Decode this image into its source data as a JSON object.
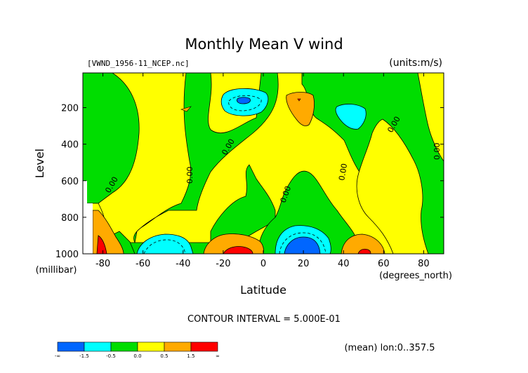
{
  "chart_data": {
    "type": "heatmap",
    "title": "Monthly Mean V wind",
    "file_label": "[VWND_1956-11_NCEP.nc]",
    "units_label": "(units:m/s)",
    "xlabel": "Latitude",
    "x_units": "(degrees_north)",
    "ylabel": "Level",
    "y_units": "(millibar)",
    "xlim": [
      -90,
      90
    ],
    "ylim": [
      1000,
      10
    ],
    "y_scale": "linear, inverted (pressure)",
    "x_ticks": [
      -80,
      -60,
      -40,
      -20,
      0,
      20,
      40,
      60,
      80
    ],
    "y_ticks": [
      200,
      400,
      600,
      800,
      1000
    ],
    "contour_interval_text": "CONTOUR INTERVAL = 5.000E-01",
    "contour_labels": [
      "0.00",
      "0.00",
      "0.00",
      "0.00",
      "0.00",
      "0.00",
      "0.00"
    ],
    "footer_text": "(mean) lon:0..357.5",
    "colorbar": {
      "bins": [
        {
          "range": "< -1.5",
          "color": "#0066ff"
        },
        {
          "range": "-1.5 to -0.5",
          "color": "#00ffff"
        },
        {
          "range": "-0.5 to 0.0",
          "color": "#00dd00"
        },
        {
          "range": "0.0 to 0.5",
          "color": "#ffff00"
        },
        {
          "range": "0.5 to 1.5",
          "color": "#ffaa00"
        },
        {
          "range": "> 1.5",
          "color": "#ff0000"
        }
      ],
      "labels": [
        "-∞",
        "-1.5",
        "-0.5",
        "0.0",
        "0.5",
        "1.5",
        "∞"
      ]
    },
    "regions": [
      {
        "name": "green-left-column",
        "level": "-0.5 to 0.0",
        "lat": [
          -90,
          -60
        ],
        "lev": [
          40,
          640
        ]
      },
      {
        "name": "green-mid-band",
        "level": "-0.5 to 0.0",
        "lat": [
          -45,
          -10
        ],
        "lev": [
          40,
          960
        ]
      },
      {
        "name": "cyan-upper-10S",
        "level": "-1.5 to -0.5",
        "lat": [
          -20,
          -3
        ],
        "lev": [
          100,
          220
        ]
      },
      {
        "name": "blue-upper-10S",
        "level": "< -1.5",
        "lat": [
          -14,
          -9
        ],
        "lev": [
          140,
          170
        ]
      },
      {
        "name": "orange-upper-20N",
        "level": "0.5 to 1.5",
        "lat": [
          12,
          24
        ],
        "lev": [
          90,
          280
        ]
      },
      {
        "name": "red-upper-20N",
        "level": "> 1.5",
        "lat": [
          17,
          19
        ],
        "lev": [
          140,
          150
        ]
      },
      {
        "name": "cyan-upper-40N",
        "level": "-1.5 to -0.5",
        "lat": [
          36,
          52
        ],
        "lev": [
          160,
          280
        ]
      },
      {
        "name": "green-right-block",
        "level": "-0.5 to 0.0",
        "lat": [
          25,
          90
        ],
        "lev": [
          40,
          960
        ]
      },
      {
        "name": "cyan-surface-50S",
        "level": "-1.5 to -0.5",
        "lat": [
          -63,
          -35
        ],
        "lev": [
          880,
          1000
        ]
      },
      {
        "name": "red-surface-10S",
        "level": "> 1.5",
        "lat": [
          -20,
          -3
        ],
        "lev": [
          960,
          1000
        ]
      },
      {
        "name": "orange-surface-10S",
        "level": "0.5 to 1.5",
        "lat": [
          -26,
          0
        ],
        "lev": [
          890,
          1000
        ]
      },
      {
        "name": "blue-surface-20N",
        "level": "< -1.5",
        "lat": [
          12,
          27
        ],
        "lev": [
          900,
          1000
        ]
      },
      {
        "name": "cyan-surface-20N",
        "level": "-1.5 to -0.5",
        "lat": [
          7,
          33
        ],
        "lev": [
          840,
          1000
        ]
      },
      {
        "name": "orange-surface-50N",
        "level": "0.5 to 1.5",
        "lat": [
          38,
          58
        ],
        "lev": [
          870,
          1000
        ]
      },
      {
        "name": "red-surface-50N",
        "level": "> 1.5",
        "lat": [
          47,
          53
        ],
        "lev": [
          970,
          1000
        ]
      },
      {
        "name": "red-surface-85S",
        "level": "> 1.5",
        "lat": [
          -88,
          -83
        ],
        "lev": [
          900,
          1000
        ]
      },
      {
        "name": "orange-surface-85S",
        "level": "0.5 to 1.5",
        "lat": [
          -90,
          -73
        ],
        "lev": [
          750,
          1000
        ]
      }
    ]
  }
}
